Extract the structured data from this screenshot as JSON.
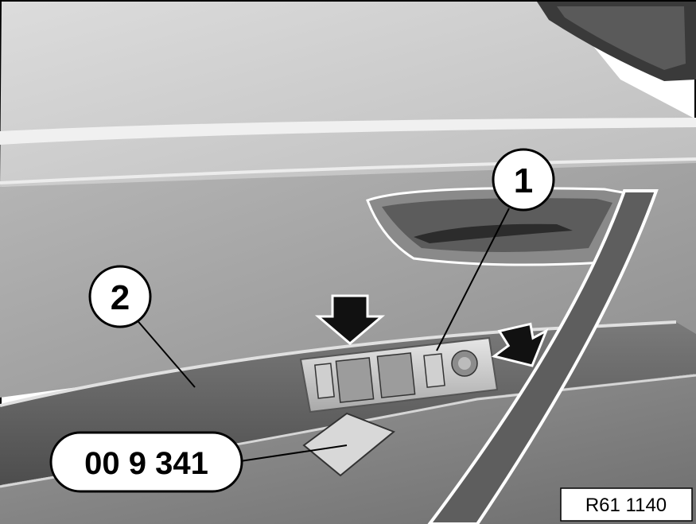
{
  "callouts": {
    "callout_1": "1",
    "callout_2": "2"
  },
  "tool_label": "00 9 341",
  "figure_reference": "R61 1140"
}
